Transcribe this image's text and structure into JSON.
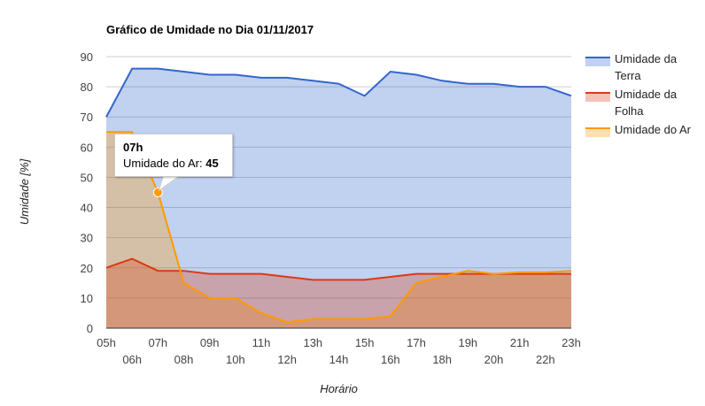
{
  "chart_data": {
    "type": "area",
    "title": "Gráfico de Umidade no Dia 01/11/2017",
    "xlabel": "Horário",
    "ylabel": "Umidade [%]",
    "ylim": [
      0,
      90
    ],
    "yticks": [
      "0",
      "10",
      "20",
      "30",
      "40",
      "50",
      "60",
      "70",
      "80",
      "90"
    ],
    "grid": true,
    "legend_position": "right",
    "categories": [
      "05h",
      "06h",
      "07h",
      "08h",
      "09h",
      "10h",
      "11h",
      "12h",
      "13h",
      "14h",
      "15h",
      "16h",
      "17h",
      "18h",
      "19h",
      "20h",
      "21h",
      "22h",
      "23h"
    ],
    "series": [
      {
        "name": "Umidade da Terra",
        "color": "#3366cc",
        "values": [
          70,
          86,
          86,
          85,
          84,
          84,
          83,
          83,
          82,
          81,
          77,
          85,
          84,
          82,
          81,
          81,
          80,
          80,
          77
        ]
      },
      {
        "name": "Umidade da Folha",
        "color": "#dc3912",
        "values": [
          20,
          23,
          19,
          19,
          18,
          18,
          18,
          17,
          16,
          16,
          16,
          17,
          18,
          18,
          18,
          18,
          18,
          18,
          18
        ]
      },
      {
        "name": "Umidade do Ar",
        "color": "#ff9900",
        "values": [
          65,
          65,
          45,
          15,
          10,
          10,
          5,
          2,
          3,
          3,
          3,
          4,
          15,
          17,
          19,
          18,
          18.5,
          18.5,
          19
        ]
      }
    ]
  },
  "legend": {
    "items": [
      {
        "lines": [
          "Umidade da",
          "Terra"
        ],
        "color": "#3366cc"
      },
      {
        "lines": [
          "Umidade da",
          "Folha"
        ],
        "color": "#dc3912"
      },
      {
        "lines": [
          "Umidade do Ar"
        ],
        "color": "#ff9900"
      }
    ]
  },
  "tooltip": {
    "title": "07h",
    "label": "Umidade do Ar:",
    "value": "45"
  }
}
